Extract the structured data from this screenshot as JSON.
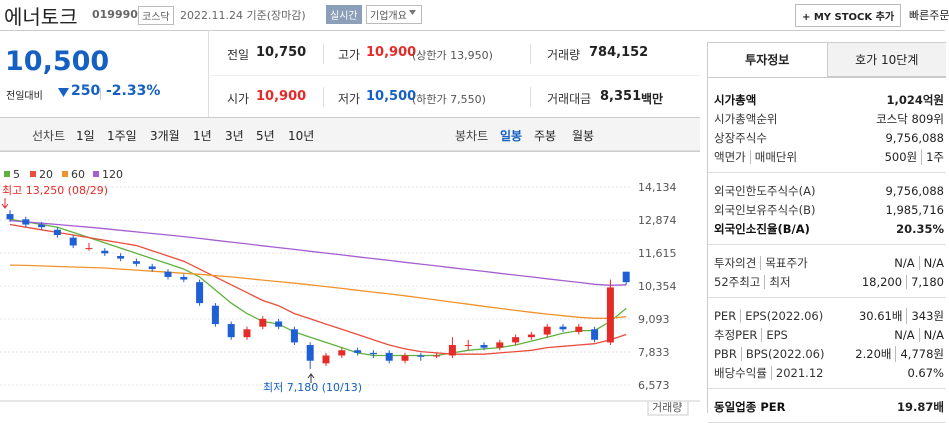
{
  "header": {
    "name": "에너토크",
    "code": "019990",
    "market": "코스닥",
    "date": "2022.11.24 기준(장마감)",
    "realtime": "실시간",
    "company_info": "기업개요",
    "my_stock": "+ MY STOCK 추가",
    "quick_order": "빠른주문"
  },
  "price": {
    "current": "10,500",
    "change_label": "전일대비",
    "change": "250",
    "change_rate": "-2.33%"
  },
  "quote": {
    "rows": [
      [
        {
          "label": "전일",
          "value": "10,750"
        },
        {
          "label": "고가",
          "value": "10,900",
          "note": "(상한가 13,950)"
        },
        {
          "label": "거래량",
          "value": "784,152"
        }
      ],
      [
        {
          "label": "시가",
          "value": "10,900"
        },
        {
          "label": "저가",
          "value": "10,500",
          "note": "(하한가 7,550)"
        },
        {
          "label": "거래대금",
          "value": "8,351",
          "unit": "백만"
        }
      ]
    ]
  },
  "periods": {
    "line_label": "선차트",
    "line": [
      "1일",
      "1주일",
      "3개월",
      "1년",
      "3년",
      "5년",
      "10년"
    ],
    "candle_label": "봉차트",
    "candle": [
      "일봉",
      "주봉",
      "월봉"
    ]
  },
  "chart_data": {
    "type": "candlestick",
    "open": [
      13100,
      12900,
      12700,
      12500,
      12200,
      11800,
      11700,
      11500,
      11300,
      11100,
      10900,
      10700,
      10500,
      9600,
      8900,
      8400,
      8800,
      9000,
      8700,
      8100,
      7400,
      7700,
      7900,
      7800,
      7800,
      7500,
      7700,
      7700,
      7700,
      8100,
      8100,
      8000,
      8200,
      8400,
      8500,
      8800,
      8600,
      8700,
      8200,
      10900
    ],
    "high": [
      13250,
      13000,
      12800,
      12600,
      12300,
      12000,
      11800,
      11600,
      11400,
      11200,
      11000,
      10800,
      10600,
      9700,
      9000,
      8800,
      9200,
      9100,
      8800,
      8200,
      7800,
      8000,
      8000,
      7900,
      7900,
      7800,
      7800,
      7800,
      8400,
      8300,
      8200,
      8300,
      8500,
      8600,
      8900,
      8900,
      8900,
      8800,
      10600,
      10900
    ],
    "low": [
      12800,
      12600,
      12500,
      12200,
      11800,
      11700,
      11500,
      11300,
      11100,
      10900,
      10600,
      10500,
      9600,
      8800,
      8300,
      8300,
      8700,
      8700,
      8100,
      7180,
      7300,
      7600,
      7700,
      7600,
      7400,
      7400,
      7500,
      7600,
      7600,
      7900,
      7900,
      7900,
      8100,
      8300,
      8400,
      8600,
      8500,
      8200,
      8100,
      10400
    ],
    "close": [
      12900,
      12700,
      12600,
      12300,
      11900,
      11800,
      11600,
      11400,
      11200,
      11000,
      10700,
      10600,
      9700,
      8900,
      8400,
      8700,
      9100,
      8800,
      8200,
      7500,
      7700,
      7900,
      7800,
      7750,
      7500,
      7700,
      7650,
      7700,
      8100,
      8100,
      8000,
      8200,
      8400,
      8500,
      8800,
      8700,
      8800,
      8300,
      10300,
      10500
    ],
    "series": [
      {
        "name": "5",
        "color": "#5fb13c",
        "values": [
          12900,
          12800,
          12700,
          12600,
          12400,
          12200,
          12000,
          11800,
          11600,
          11400,
          11200,
          11000,
          10700,
          10200,
          9700,
          9300,
          9000,
          8900,
          8600,
          8400,
          8200,
          8000,
          7800,
          7700,
          7700,
          7700,
          7700,
          7700,
          7800,
          7900,
          7950,
          8000,
          8100,
          8250,
          8400,
          8550,
          8650,
          8650,
          9000,
          9500
        ]
      },
      {
        "name": "20",
        "color": "#ea4d3c",
        "values": [
          12700,
          12600,
          12500,
          12400,
          12300,
          12200,
          12100,
          12000,
          11900,
          11700,
          11500,
          11300,
          11000,
          10700,
          10400,
          10100,
          9800,
          9600,
          9300,
          9100,
          8900,
          8700,
          8500,
          8300,
          8100,
          7950,
          7850,
          7800,
          7750,
          7750,
          7750,
          7800,
          7850,
          7900,
          8000,
          8050,
          8100,
          8150,
          8300,
          8500
        ]
      },
      {
        "name": "60",
        "color": "#f0932b",
        "values": [
          11150,
          11140,
          11120,
          11100,
          11080,
          11060,
          11040,
          11000,
          10960,
          10920,
          10880,
          10840,
          10800,
          10750,
          10700,
          10640,
          10580,
          10520,
          10460,
          10400,
          10330,
          10260,
          10190,
          10120,
          10050,
          9980,
          9900,
          9820,
          9740,
          9660,
          9580,
          9500,
          9420,
          9350,
          9280,
          9220,
          9160,
          9120,
          9120,
          9180
        ]
      },
      {
        "name": "120",
        "color": "#a45fd0",
        "values": [
          12850,
          12800,
          12750,
          12700,
          12650,
          12600,
          12540,
          12480,
          12420,
          12360,
          12300,
          12240,
          12170,
          12100,
          12030,
          11960,
          11890,
          11820,
          11750,
          11680,
          11610,
          11540,
          11470,
          11400,
          11330,
          11260,
          11190,
          11120,
          11050,
          10980,
          10910,
          10840,
          10770,
          10700,
          10630,
          10560,
          10490,
          10420,
          10380,
          10400
        ]
      }
    ],
    "up_color": "#e52b28",
    "down_color": "#1f5fd6",
    "ylim": [
      6077,
      15241
    ],
    "yticks": [
      {
        "value": 14134,
        "label": "14,134"
      },
      {
        "value": 12874,
        "label": "12,874"
      },
      {
        "value": 11615,
        "label": "11,615"
      },
      {
        "value": 10354,
        "label": "10,354"
      },
      {
        "value": 9093,
        "label": "9,093"
      },
      {
        "value": 7833,
        "label": "7,833"
      },
      {
        "value": 6573,
        "label": "6,573"
      }
    ],
    "grid": true,
    "annotations": [
      "최고 13,250 (08/29)",
      "최저 7,180 (10/13)"
    ],
    "volume_label": "거래량"
  },
  "invest": {
    "tabs": [
      "투자정보",
      "호가 10단계"
    ],
    "groups": [
      [
        {
          "labels": [
            "시가총액"
          ],
          "values": [
            "1,024억원"
          ]
        },
        {
          "labels": [
            "시가총액순위"
          ],
          "values": [
            "코스닥 809위"
          ]
        },
        {
          "labels": [
            "상장주식수"
          ],
          "values": [
            "9,756,088"
          ]
        },
        {
          "labels": [
            "액면가",
            "매매단위"
          ],
          "values": [
            "500원",
            "1주"
          ]
        }
      ],
      [
        {
          "labels": [
            "외국인한도주식수(A)"
          ],
          "values": [
            "9,756,088"
          ]
        },
        {
          "labels": [
            "외국인보유주식수(B)"
          ],
          "values": [
            "1,985,716"
          ]
        },
        {
          "labels": [
            "외국인소진율(B/A)"
          ],
          "values": [
            "20.35%"
          ]
        }
      ],
      [
        {
          "labels": [
            "투자의견",
            "목표주가"
          ],
          "values": [
            "N/A",
            "N/A"
          ]
        },
        {
          "labels": [
            "52주최고",
            "최저"
          ],
          "values": [
            "18,200",
            "7,180"
          ]
        }
      ],
      [
        {
          "labels": [
            "PER",
            "EPS(2022.06)"
          ],
          "values": [
            "30.61배",
            "343원"
          ]
        },
        {
          "labels": [
            "추정PER",
            "EPS"
          ],
          "values": [
            "N/A",
            "N/A"
          ]
        },
        {
          "labels": [
            "PBR",
            "BPS(2022.06)"
          ],
          "values": [
            "2.20배",
            "4,778원"
          ]
        },
        {
          "labels": [
            "배당수익률",
            "2021.12"
          ],
          "values": [
            "0.67%"
          ]
        }
      ],
      [
        {
          "labels": [
            "동일업종 PER"
          ],
          "values": [
            "19.87배"
          ]
        }
      ]
    ]
  }
}
